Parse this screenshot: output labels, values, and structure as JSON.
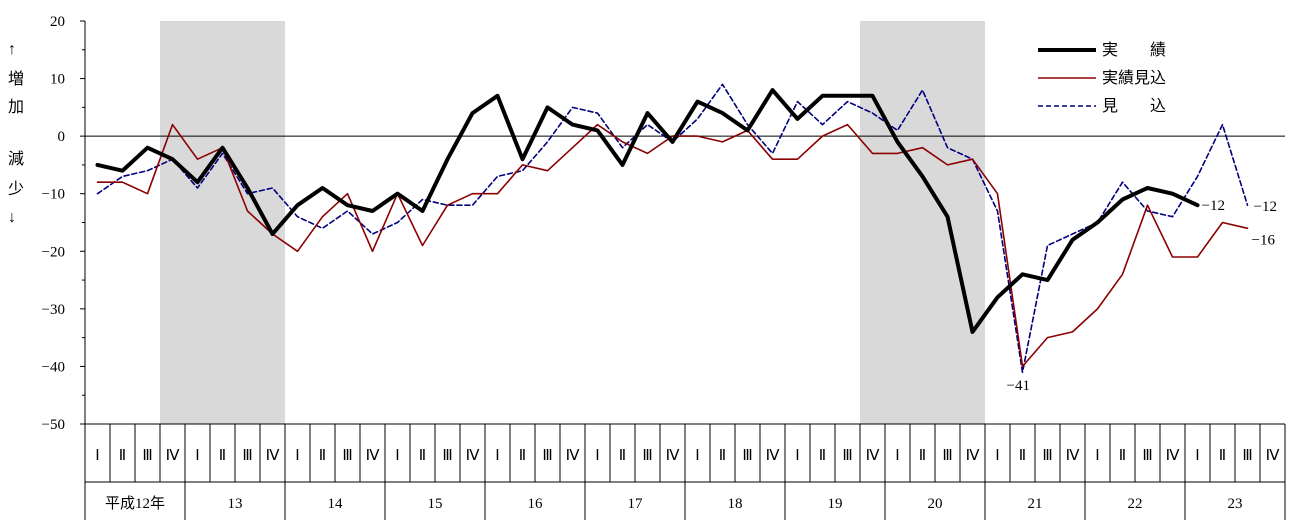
{
  "ylabel_chars": [
    "↑",
    "増",
    "加",
    "",
    "減",
    "少",
    "↓"
  ],
  "chart_data": {
    "type": "line",
    "ylim": [
      -50,
      20
    ],
    "yticks": [
      20,
      10,
      0,
      -10,
      -20,
      -30,
      -40,
      -50
    ],
    "ytick_labels": [
      "20",
      "10",
      "0",
      "−10",
      "−20",
      "−30",
      "−40",
      "−50"
    ],
    "quarter_labels": [
      "Ⅰ",
      "Ⅱ",
      "Ⅲ",
      "Ⅳ"
    ],
    "year_labels": [
      "平成12年",
      "13",
      "14",
      "15",
      "16",
      "17",
      "18",
      "19",
      "20",
      "21",
      "22",
      "23"
    ],
    "shaded_regions": [
      {
        "from_quarter": 3,
        "to_quarter": 8
      },
      {
        "from_quarter": 31,
        "to_quarter": 36
      }
    ],
    "legend_position": "top-right",
    "grid": false,
    "series": [
      {
        "name": "実　　績",
        "color": "#000000",
        "style": "solid-thick",
        "start_quarter": 0,
        "values": [
          -5,
          -6,
          -2,
          -4,
          -8,
          -2,
          -9,
          -17,
          -12,
          -9,
          -12,
          -13,
          -10,
          -13,
          -4,
          4,
          7,
          -4,
          5,
          2,
          1,
          -5,
          4,
          -1,
          6,
          4,
          1,
          8,
          3,
          7,
          7,
          7,
          -1,
          -7,
          -14,
          -34,
          -28,
          -24,
          -25,
          -18,
          -15,
          -11,
          -9,
          -10,
          -12
        ]
      },
      {
        "name": "実績見込",
        "color": "#8b0000",
        "style": "solid",
        "start_quarter": 0,
        "values": [
          -8,
          -8,
          -10,
          2,
          -4,
          -2,
          -13,
          -17,
          -20,
          -14,
          -10,
          -20,
          -10,
          -19,
          -12,
          -10,
          -10,
          -5,
          -6,
          -2,
          2,
          -1,
          -3,
          0,
          0,
          -1,
          1,
          -4,
          -4,
          0,
          2,
          -3,
          -3,
          -2,
          -5,
          -4,
          -10,
          -40,
          -35,
          -34,
          -30,
          -24,
          -12,
          -21,
          -21,
          -15,
          -16
        ]
      },
      {
        "name": "見　　込",
        "color": "#00007f",
        "style": "dashed",
        "start_quarter": 0,
        "values": [
          -10,
          -7,
          -6,
          -4,
          -9,
          -3,
          -10,
          -9,
          -14,
          -16,
          -13,
          -17,
          -15,
          -11,
          -12,
          -12,
          -7,
          -6,
          -1,
          5,
          4,
          -2,
          2,
          -1,
          3,
          9,
          2,
          -3,
          6,
          2,
          6,
          4,
          1,
          8,
          -2,
          -4,
          -13,
          -41,
          -19,
          -17,
          -15,
          -8,
          -13,
          -14,
          -7,
          2,
          -12
        ]
      }
    ],
    "annotations": [
      {
        "text": "−12",
        "near_series": "実　　績",
        "quarter": 44,
        "value": -12
      },
      {
        "text": "−12",
        "near_series": "見　　込",
        "quarter": 46,
        "value": -12
      },
      {
        "text": "−16",
        "near_series": "実績見込",
        "quarter": 46,
        "value": -16
      },
      {
        "text": "−41",
        "near_series": "見　　込",
        "quarter": 37,
        "value": -41
      }
    ]
  }
}
